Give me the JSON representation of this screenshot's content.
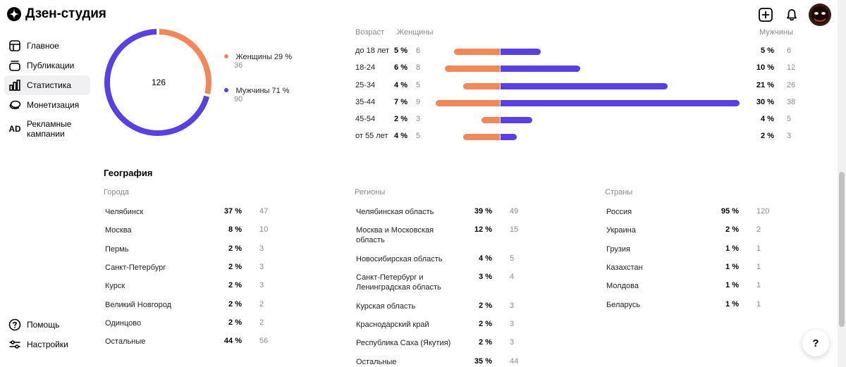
{
  "app": {
    "title": "Дзен-студия"
  },
  "sidebar": {
    "items": [
      {
        "label": "Главное",
        "icon": "layout-icon"
      },
      {
        "label": "Публикации",
        "icon": "stack-icon"
      },
      {
        "label": "Статистика",
        "icon": "bar-chart-icon",
        "active": true
      },
      {
        "label": "Монетизация",
        "icon": "coins-icon"
      },
      {
        "label": "Рекламные кампании",
        "icon": "ad-icon",
        "icon_text": "AD"
      }
    ],
    "bottom": [
      {
        "label": "Помощь",
        "icon": "help-icon"
      },
      {
        "label": "Настройки",
        "icon": "settings-icon"
      }
    ]
  },
  "donut": {
    "total": "126",
    "women": {
      "label": "Женщины 29 %",
      "count": "36",
      "color": "#f2875a"
    },
    "men": {
      "label": "Мужчины 71 %",
      "count": "90",
      "color": "#5b3fe0"
    }
  },
  "age": {
    "headers": {
      "age": "Возраст",
      "women": "Женщины",
      "men": "Мужчины"
    },
    "rows": [
      {
        "label": "до 18 лет",
        "w_pct": "5 %",
        "w_cnt": "6",
        "m_pct": "5 %",
        "m_cnt": "6"
      },
      {
        "label": "18-24",
        "w_pct": "6 %",
        "w_cnt": "8",
        "m_pct": "10 %",
        "m_cnt": "12"
      },
      {
        "label": "25-34",
        "w_pct": "4 %",
        "w_cnt": "5",
        "m_pct": "21 %",
        "m_cnt": "26"
      },
      {
        "label": "35-44",
        "w_pct": "7 %",
        "w_cnt": "9",
        "m_pct": "30 %",
        "m_cnt": "38"
      },
      {
        "label": "45-54",
        "w_pct": "2 %",
        "w_cnt": "3",
        "m_pct": "4 %",
        "m_cnt": "5"
      },
      {
        "label": "от 55 лет",
        "w_pct": "4 %",
        "w_cnt": "5",
        "m_pct": "2 %",
        "m_cnt": "3"
      }
    ]
  },
  "geography": {
    "title": "География",
    "cities": {
      "header": "Города",
      "rows": [
        {
          "label": "Челябинск",
          "pct": "37 %",
          "cnt": "47"
        },
        {
          "label": "Москва",
          "pct": "8 %",
          "cnt": "10"
        },
        {
          "label": "Пермь",
          "pct": "2 %",
          "cnt": "3"
        },
        {
          "label": "Санкт-Петербург",
          "pct": "2 %",
          "cnt": "3"
        },
        {
          "label": "Курск",
          "pct": "2 %",
          "cnt": "3"
        },
        {
          "label": "Великий Новгород",
          "pct": "2 %",
          "cnt": "2"
        },
        {
          "label": "Одинцово",
          "pct": "2 %",
          "cnt": "2"
        },
        {
          "label": "Остальные",
          "pct": "44 %",
          "cnt": "56"
        }
      ]
    },
    "regions": {
      "header": "Регионы",
      "rows": [
        {
          "label": "Челябинская область",
          "pct": "39 %",
          "cnt": "49"
        },
        {
          "label": "Москва и Московская область",
          "pct": "12 %",
          "cnt": "15"
        },
        {
          "label": "Новосибирская область",
          "pct": "4 %",
          "cnt": "5"
        },
        {
          "label": "Санкт-Петербург и Ленинградская область",
          "pct": "3 %",
          "cnt": "4"
        },
        {
          "label": "Курская область",
          "pct": "2 %",
          "cnt": "3"
        },
        {
          "label": "Краснодарский край",
          "pct": "2 %",
          "cnt": "3"
        },
        {
          "label": "Республика Саха (Якутия)",
          "pct": "2 %",
          "cnt": "3"
        },
        {
          "label": "Остальные",
          "pct": "35 %",
          "cnt": "44"
        }
      ]
    },
    "countries": {
      "header": "Страны",
      "rows": [
        {
          "label": "Россия",
          "pct": "95 %",
          "cnt": "120"
        },
        {
          "label": "Украина",
          "pct": "2 %",
          "cnt": "2"
        },
        {
          "label": "Грузия",
          "pct": "1 %",
          "cnt": "1"
        },
        {
          "label": "Казахстан",
          "pct": "1 %",
          "cnt": "1"
        },
        {
          "label": "Молдова",
          "pct": "1 %",
          "cnt": "1"
        },
        {
          "label": "Беларусь",
          "pct": "1 %",
          "cnt": "1"
        }
      ]
    }
  },
  "help_fab": {
    "label": "?"
  }
}
